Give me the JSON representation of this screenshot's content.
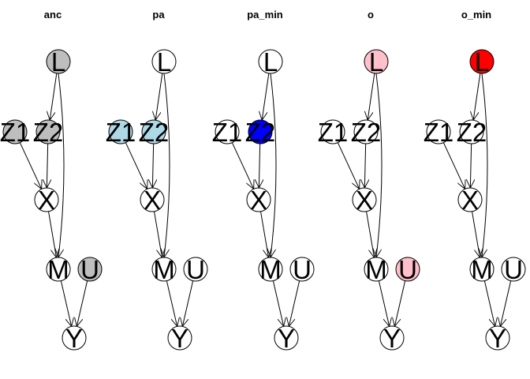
{
  "panels": [
    {
      "title": "anc",
      "fills": {
        "L": "#bebebe",
        "Z1": "#bebebe",
        "Z2": "#bebebe",
        "X": "#ffffff",
        "M": "#ffffff",
        "U": "#bebebe",
        "Y": "#ffffff"
      }
    },
    {
      "title": "pa",
      "fills": {
        "L": "#ffffff",
        "Z1": "#add8e6",
        "Z2": "#add8e6",
        "X": "#ffffff",
        "M": "#ffffff",
        "U": "#ffffff",
        "Y": "#ffffff"
      }
    },
    {
      "title": "pa_min",
      "fills": {
        "L": "#ffffff",
        "Z1": "#ffffff",
        "Z2": "#0000ff",
        "X": "#ffffff",
        "M": "#ffffff",
        "U": "#ffffff",
        "Y": "#ffffff"
      }
    },
    {
      "title": "o",
      "fills": {
        "L": "#ffc0cb",
        "Z1": "#ffffff",
        "Z2": "#ffffff",
        "X": "#ffffff",
        "M": "#ffffff",
        "U": "#ffc0cb",
        "Y": "#ffffff"
      }
    },
    {
      "title": "o_min",
      "fills": {
        "L": "#ff0000",
        "Z1": "#ffffff",
        "Z2": "#ffffff",
        "X": "#ffffff",
        "M": "#ffffff",
        "U": "#ffffff",
        "Y": "#ffffff"
      }
    }
  ],
  "nodes": [
    {
      "id": "L",
      "label": "L"
    },
    {
      "id": "Z1",
      "label": "Z1"
    },
    {
      "id": "Z2",
      "label": "Z2"
    },
    {
      "id": "X",
      "label": "X"
    },
    {
      "id": "M",
      "label": "M"
    },
    {
      "id": "U",
      "label": "U"
    },
    {
      "id": "Y",
      "label": "Y"
    }
  ],
  "edges": [
    {
      "from": "L",
      "to": "Z2"
    },
    {
      "from": "L",
      "to": "M"
    },
    {
      "from": "Z1",
      "to": "X"
    },
    {
      "from": "Z2",
      "to": "X"
    },
    {
      "from": "X",
      "to": "M"
    },
    {
      "from": "M",
      "to": "Y"
    },
    {
      "from": "U",
      "to": "Y"
    }
  ]
}
